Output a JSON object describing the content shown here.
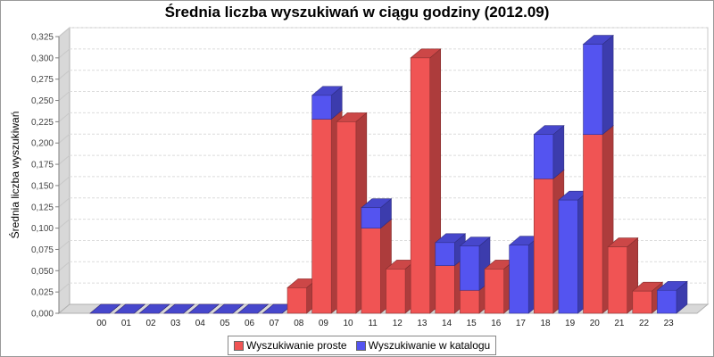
{
  "chart_data": {
    "type": "bar",
    "stacked": true,
    "three_d": true,
    "title": "Średnia liczba wyszukiwań w ciągu godziny (2012.09)",
    "ylabel": "Średnia liczba wyszukiwań",
    "xlabel": "",
    "ylim": [
      0,
      0.325
    ],
    "yticks": [
      "0,000",
      "0,025",
      "0,050",
      "0,075",
      "0,100",
      "0,125",
      "0,150",
      "0,175",
      "0,200",
      "0,225",
      "0,250",
      "0,275",
      "0,300",
      "0,325"
    ],
    "categories": [
      "00",
      "01",
      "02",
      "03",
      "04",
      "05",
      "06",
      "07",
      "08",
      "09",
      "10",
      "11",
      "12",
      "13",
      "14",
      "15",
      "16",
      "17",
      "18",
      "19",
      "20",
      "21",
      "22",
      "23"
    ],
    "series": [
      {
        "name": "Wyszukiwanie proste",
        "color": "#f05454",
        "values": [
          0,
          0,
          0,
          0,
          0,
          0,
          0,
          0,
          0.03,
          0.228,
          0.225,
          0.1,
          0.052,
          0.3,
          0.056,
          0.027,
          0.052,
          0,
          0.158,
          0,
          0.21,
          0.078,
          0.026,
          0
        ]
      },
      {
        "name": "Wyszukiwanie w katalogu",
        "color": "#5454f0",
        "values": [
          0,
          0,
          0,
          0,
          0,
          0,
          0,
          0,
          0,
          0.028,
          0,
          0.024,
          0,
          0,
          0.027,
          0.052,
          0,
          0.08,
          0.052,
          0.133,
          0.106,
          0,
          0,
          0.027
        ]
      }
    ],
    "grid": true,
    "legend_position": "bottom"
  }
}
